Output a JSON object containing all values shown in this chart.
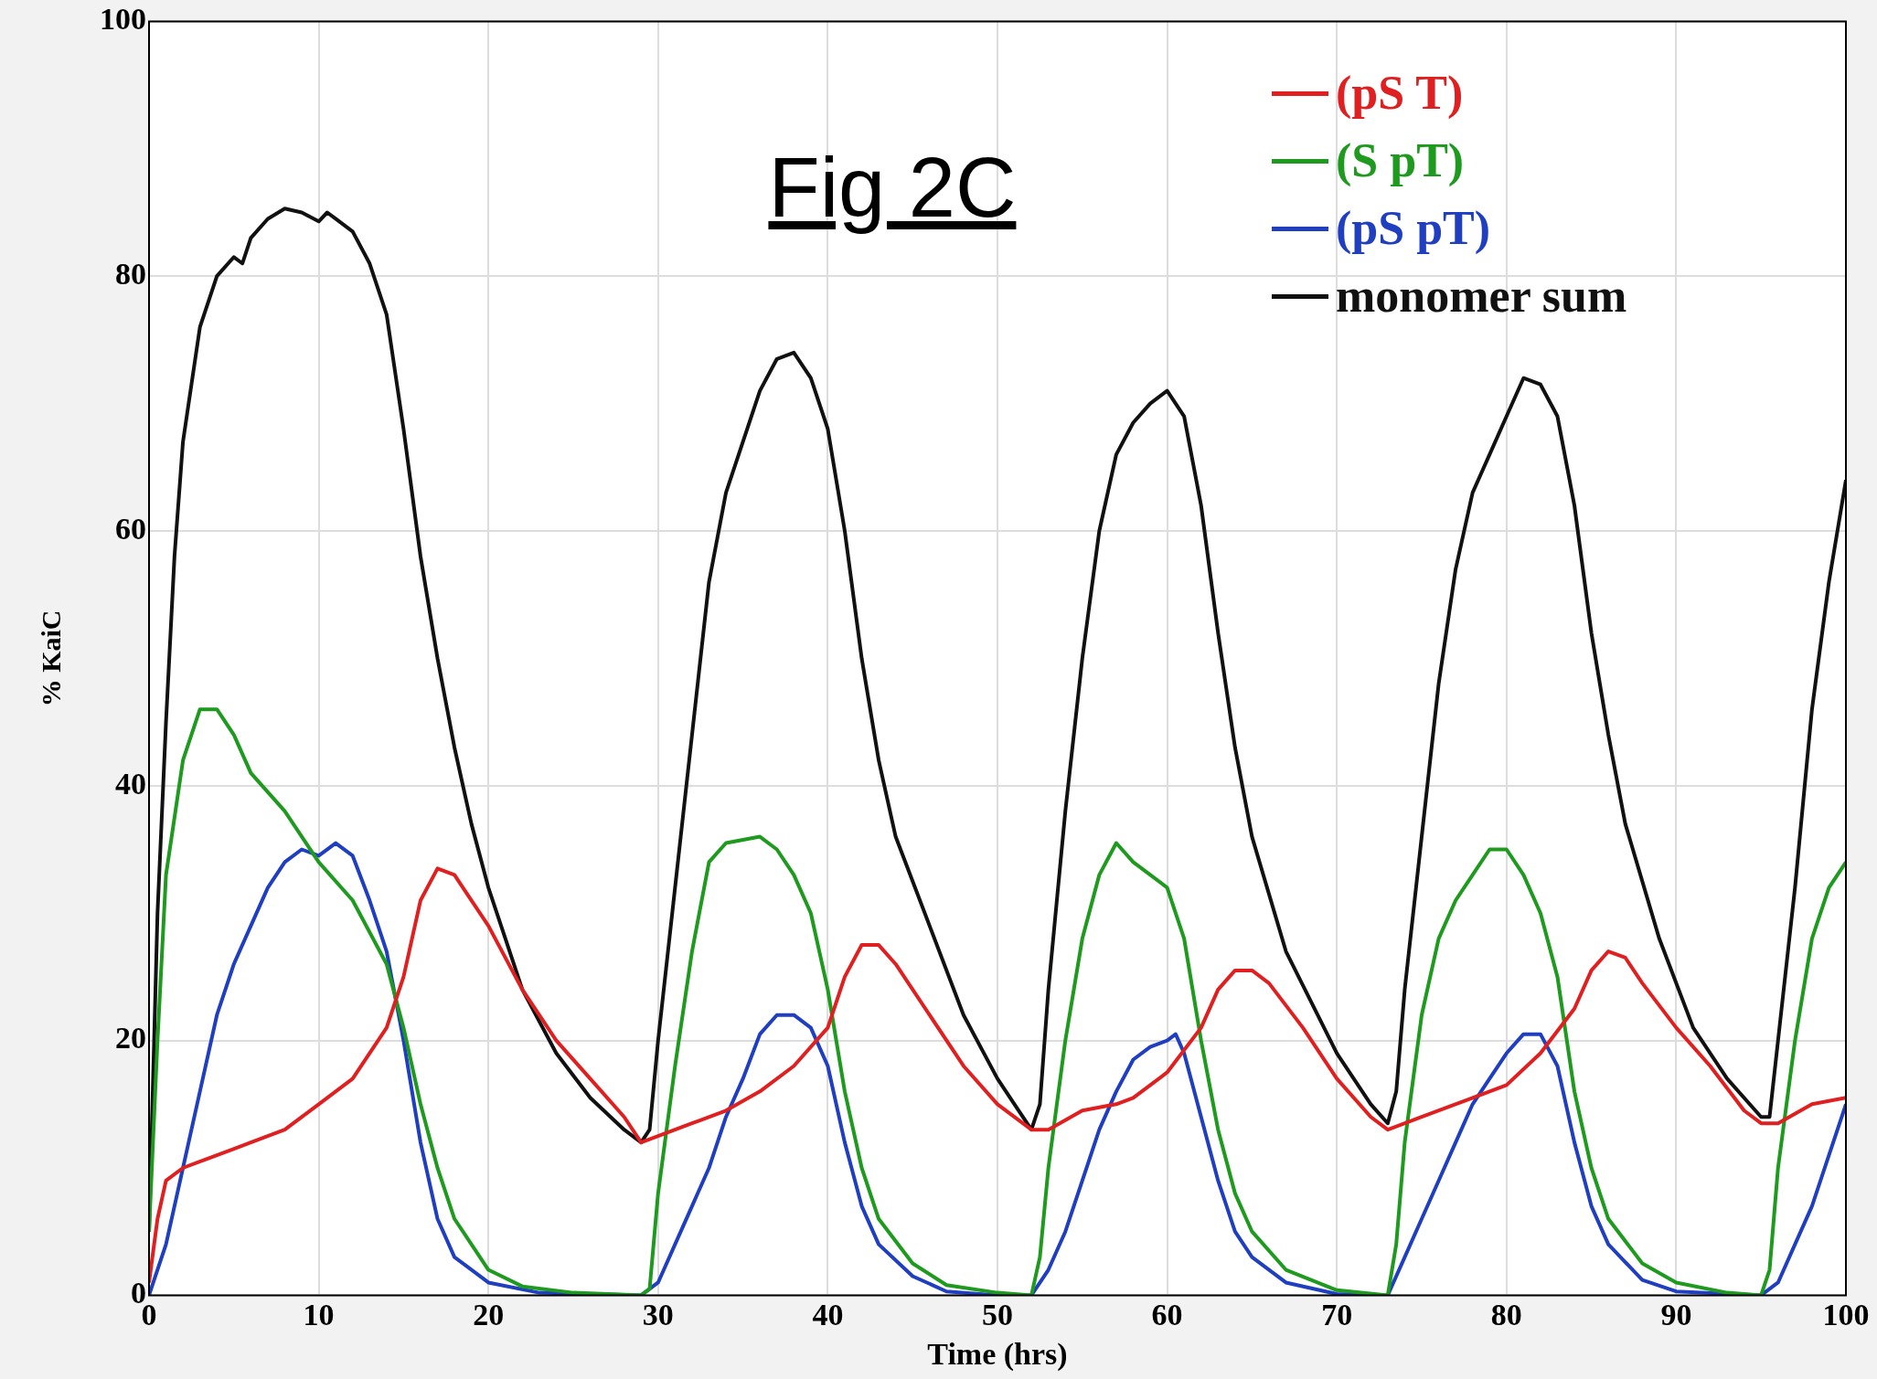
{
  "chart_data": {
    "type": "line",
    "xlabel": "Time (hrs)",
    "ylabel": "% KaiC",
    "annotations": [
      "Fig 2C"
    ],
    "xlim": [
      0,
      100
    ],
    "ylim": [
      0,
      100
    ],
    "xticks": [
      0,
      10,
      20,
      30,
      40,
      50,
      60,
      70,
      80,
      90,
      100
    ],
    "yticks": [
      0,
      20,
      40,
      60,
      80,
      100
    ],
    "grid": true,
    "legend": "top right",
    "marker": "none",
    "line_style": "solid",
    "series": [
      {
        "name": "(pS T)",
        "color": "#e02020",
        "x": [
          0,
          0.5,
          1,
          2,
          4,
          6,
          8,
          10,
          12,
          14,
          15,
          16,
          17,
          18,
          20,
          22,
          24,
          26,
          28,
          29,
          30,
          32,
          34,
          36,
          38,
          40,
          41,
          42,
          43,
          44,
          46,
          48,
          50,
          52,
          53,
          55,
          57,
          58,
          60,
          62,
          63,
          64,
          65,
          66,
          68,
          70,
          72,
          73,
          75,
          78,
          80,
          82,
          84,
          85,
          86,
          87,
          88,
          90,
          92,
          94,
          95,
          96,
          98,
          100
        ],
        "values": [
          1,
          6,
          9,
          10,
          11,
          12,
          13,
          15,
          17,
          21,
          25,
          31,
          33.5,
          33,
          29,
          24,
          20,
          17,
          14,
          12,
          12.5,
          13.5,
          14.5,
          16,
          18,
          21,
          25,
          27.5,
          27.5,
          26,
          22,
          18,
          15,
          13,
          13,
          14.5,
          15,
          15.5,
          17.5,
          21,
          24,
          25.5,
          25.5,
          24.5,
          21,
          17,
          14,
          13,
          14,
          15.5,
          16.5,
          19,
          22.5,
          25.5,
          27,
          26.5,
          24.5,
          21,
          18,
          14.5,
          13.5,
          13.5,
          15,
          15.5
        ]
      },
      {
        "name": "(S pT)",
        "color": "#1e9a1e",
        "x": [
          0,
          0.5,
          1,
          2,
          3,
          4,
          5,
          6,
          8,
          10,
          12,
          14,
          15,
          16,
          17,
          18,
          20,
          22,
          25,
          29,
          29.5,
          30,
          31,
          32,
          33,
          34,
          36,
          37,
          38,
          39,
          40,
          41,
          42,
          43,
          45,
          47,
          50,
          52,
          52.5,
          53,
          54,
          55,
          56,
          57,
          58,
          60,
          61,
          62,
          63,
          64,
          65,
          67,
          70,
          73,
          73.5,
          74,
          75,
          76,
          77,
          78,
          79,
          80,
          81,
          82,
          83,
          84,
          85,
          86,
          88,
          90,
          93,
          95,
          95.5,
          96,
          97,
          98,
          99,
          100
        ],
        "values": [
          5,
          20,
          33,
          42,
          46,
          46,
          44,
          41,
          38,
          34,
          31,
          26,
          21,
          15,
          10,
          6,
          2,
          0.7,
          0.2,
          0,
          0.5,
          8,
          18,
          27,
          34,
          35.5,
          36,
          35,
          33,
          30,
          24,
          16,
          10,
          6,
          2.5,
          0.8,
          0.2,
          0,
          3,
          10,
          20,
          28,
          33,
          35.5,
          34,
          32,
          28,
          20,
          13,
          8,
          5,
          2,
          0.4,
          0,
          4,
          12,
          22,
          28,
          31,
          33,
          35,
          35,
          33,
          30,
          25,
          16,
          10,
          6,
          2.5,
          1,
          0.2,
          0,
          2,
          10,
          20,
          28,
          32,
          34
        ]
      },
      {
        "name": "(pS pT)",
        "color": "#1f3fc0",
        "x": [
          0,
          1,
          2,
          3,
          4,
          5,
          6,
          7,
          8,
          9,
          10,
          11,
          12,
          13,
          14,
          15,
          16,
          17,
          18,
          20,
          23,
          29,
          30,
          31,
          32,
          33,
          34,
          35,
          36,
          37,
          38,
          39,
          40,
          41,
          42,
          43,
          45,
          47,
          50,
          52,
          53,
          54,
          55,
          56,
          57,
          58,
          59,
          60,
          60.5,
          61,
          62,
          63,
          64,
          65,
          67,
          70,
          73,
          74,
          75,
          76,
          77,
          78,
          79,
          80,
          81,
          82,
          83,
          84,
          85,
          86,
          88,
          90,
          95,
          96,
          97,
          98,
          99,
          100
        ],
        "values": [
          0,
          4,
          10,
          16,
          22,
          26,
          29,
          32,
          34,
          35,
          34.5,
          35.5,
          34.5,
          31,
          27,
          20,
          12,
          6,
          3,
          1,
          0.2,
          0,
          1,
          4,
          7,
          10,
          14,
          17,
          20.5,
          22,
          22,
          21,
          18,
          12,
          7,
          4,
          1.5,
          0.3,
          0,
          0,
          2,
          5,
          9,
          13,
          16,
          18.5,
          19.5,
          20,
          20.5,
          19,
          14,
          9,
          5,
          3,
          1,
          0.1,
          0,
          3,
          6,
          9,
          12,
          15,
          17,
          19,
          20.5,
          20.5,
          18,
          12,
          7,
          4,
          1.2,
          0.3,
          0,
          1,
          4,
          7,
          11,
          15
        ]
      },
      {
        "name": "monomer sum",
        "color": "#111111",
        "x": [
          0,
          0.5,
          1,
          1.5,
          2,
          3,
          4,
          5,
          5.5,
          6,
          7,
          8,
          9,
          10,
          10.5,
          11,
          12,
          13,
          14,
          15,
          16,
          17,
          18,
          19,
          20,
          22,
          24,
          26,
          28,
          29,
          29.5,
          30,
          31,
          32,
          33,
          34,
          35,
          36,
          37,
          38,
          39,
          40,
          41,
          42,
          43,
          44,
          46,
          48,
          50,
          51,
          52,
          52.5,
          53,
          54,
          55,
          56,
          57,
          58,
          59,
          60,
          61,
          62,
          63,
          64,
          65,
          67,
          70,
          72,
          73,
          73.5,
          74,
          75,
          76,
          77,
          78,
          79,
          80,
          81,
          82,
          83,
          84,
          85,
          86,
          87,
          89,
          91,
          93,
          95,
          95.5,
          96,
          97,
          98,
          99,
          100
        ],
        "values": [
          5,
          30,
          45,
          58,
          67,
          76,
          80,
          81.5,
          81,
          83,
          84.5,
          85.3,
          85,
          84.3,
          85,
          84.5,
          83.5,
          81,
          77,
          68,
          58,
          50,
          43,
          37,
          32,
          24,
          19,
          15.5,
          13,
          12,
          13,
          20,
          32,
          44,
          56,
          63,
          67,
          71,
          73.5,
          74,
          72,
          68,
          60,
          50,
          42,
          36,
          29,
          22,
          17,
          15,
          13,
          15,
          24,
          38,
          50,
          60,
          66,
          68.5,
          70,
          71,
          69,
          62,
          52,
          43,
          36,
          27,
          19,
          15,
          13.5,
          16,
          24,
          36,
          48,
          57,
          63,
          66,
          69,
          72,
          71.5,
          69,
          62,
          52,
          44,
          37,
          28,
          21,
          17,
          14,
          14,
          20,
          32,
          46,
          56,
          64
        ]
      }
    ]
  }
}
